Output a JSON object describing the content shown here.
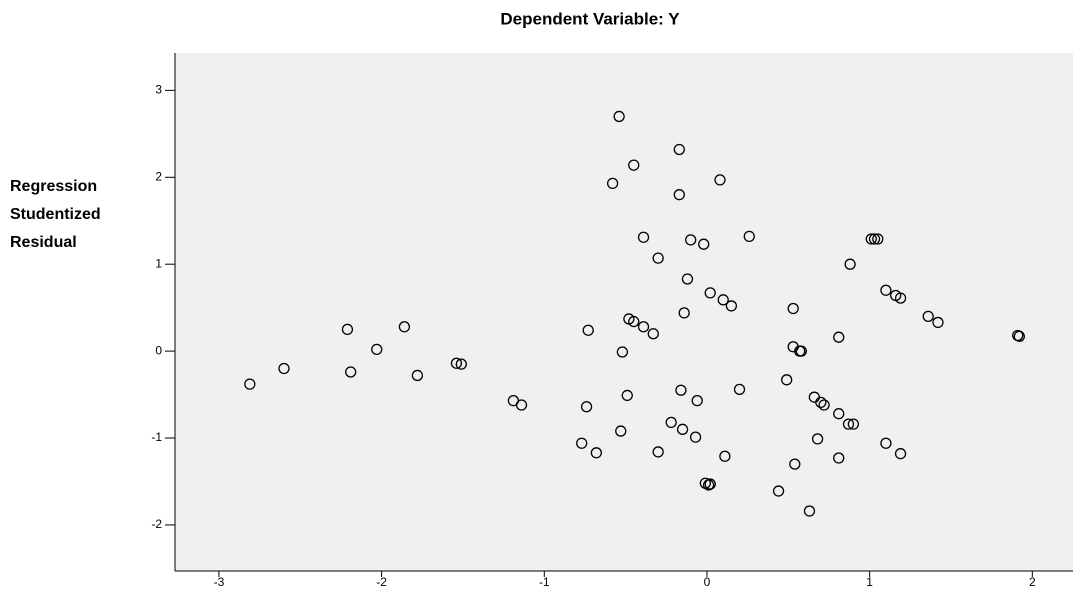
{
  "chart_data": {
    "type": "scatter",
    "title": "Dependent Variable: Y",
    "ylabel": [
      "Regression",
      "Studentized",
      "Residual"
    ],
    "xlim": [
      -3.27,
      2.25
    ],
    "ylim": [
      -2.53,
      3.43
    ],
    "xticks": [
      -3,
      -2,
      -1,
      0,
      1,
      2
    ],
    "yticks": [
      -2,
      -1,
      0,
      1,
      2,
      3
    ],
    "color": "#000000",
    "background": "#f0f0f0",
    "x": [
      -0.54,
      -0.17,
      -0.45,
      -0.58,
      0.08,
      -0.17,
      -0.39,
      -0.1,
      -0.02,
      0.26,
      -0.3,
      1.01,
      1.03,
      1.05,
      0.88,
      -0.12,
      1.1,
      1.16,
      1.19,
      0.02,
      0.1,
      0.15,
      0.53,
      1.36,
      1.42,
      1.91,
      1.92,
      -0.14,
      -0.48,
      -0.45,
      -0.39,
      -0.33,
      -0.73,
      0.81,
      0.53,
      0.57,
      0.58,
      -0.52,
      -2.21,
      -1.86,
      -2.03,
      -2.6,
      -2.19,
      -2.81,
      -1.78,
      -1.54,
      -1.51,
      -1.19,
      -1.14,
      -0.74,
      -0.49,
      -0.16,
      -0.06,
      0.2,
      0.49,
      0.66,
      0.7,
      0.72,
      0.81,
      0.87,
      0.9,
      -0.22,
      -0.15,
      -0.53,
      -0.07,
      -0.77,
      -0.68,
      -0.3,
      0.11,
      0.68,
      1.1,
      1.19,
      0.81,
      0.54,
      -0.01,
      0.01,
      0.02,
      0.44,
      0.63
    ],
    "values": [
      2.7,
      2.32,
      2.14,
      1.93,
      1.97,
      1.8,
      1.31,
      1.28,
      1.23,
      1.32,
      1.07,
      1.29,
      1.29,
      1.29,
      1.0,
      0.83,
      0.7,
      0.64,
      0.61,
      0.67,
      0.59,
      0.52,
      0.49,
      0.4,
      0.33,
      0.18,
      0.17,
      0.44,
      0.37,
      0.34,
      0.28,
      0.2,
      0.24,
      0.16,
      0.05,
      0.0,
      0.0,
      -0.01,
      0.25,
      0.28,
      0.02,
      -0.2,
      -0.24,
      -0.38,
      -0.28,
      -0.14,
      -0.15,
      -0.57,
      -0.62,
      -0.64,
      -0.51,
      -0.45,
      -0.57,
      -0.44,
      -0.33,
      -0.53,
      -0.59,
      -0.62,
      -0.72,
      -0.84,
      -0.84,
      -0.82,
      -0.9,
      -0.92,
      -0.99,
      -1.06,
      -1.17,
      -1.16,
      -1.21,
      -1.01,
      -1.06,
      -1.18,
      -1.23,
      -1.3,
      -1.52,
      -1.54,
      -1.53,
      -1.61,
      -1.84
    ]
  }
}
